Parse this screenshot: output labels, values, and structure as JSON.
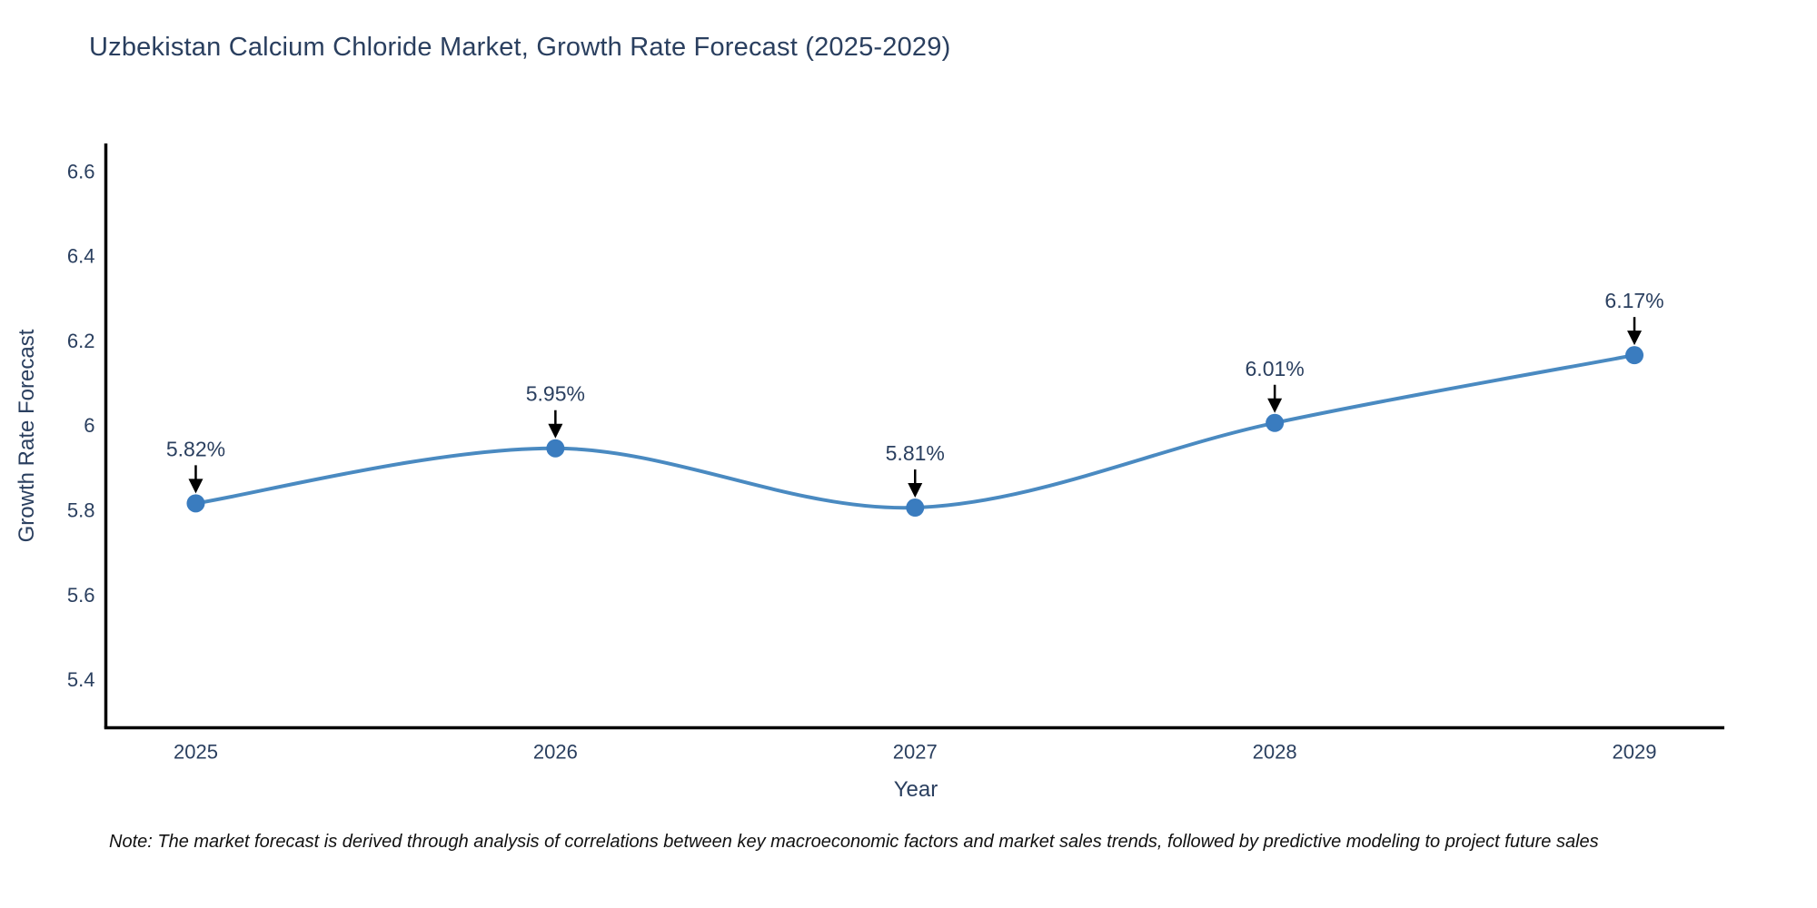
{
  "page": {
    "note": "Note: The market forecast is derived through analysis of correlations between key macroeconomic factors and market sales trends, followed by predictive modeling to project future sales"
  },
  "chart_data": {
    "type": "line",
    "title": "Uzbekistan Calcium Chloride Market, Growth Rate Forecast (2025-2029)",
    "xlabel": "Year",
    "ylabel": "Growth Rate Forecast",
    "x": [
      2025,
      2026,
      2027,
      2028,
      2029
    ],
    "values": [
      5.82,
      5.95,
      5.81,
      6.01,
      6.17
    ],
    "point_labels": [
      "5.82%",
      "5.95%",
      "5.81%",
      "6.01%",
      "6.17%"
    ],
    "xticks": [
      2025,
      2026,
      2027,
      2028,
      2029
    ],
    "xtick_labels": [
      "2025",
      "2026",
      "2027",
      "2028",
      "2029"
    ],
    "yticks": [
      5.4,
      5.6,
      5.8,
      6.0,
      6.2,
      6.4,
      6.6
    ],
    "ytick_labels": [
      "5.4",
      "5.6",
      "5.8",
      "6",
      "6.2",
      "6.4",
      "6.6"
    ],
    "xlim": [
      2024.75,
      2029.25
    ],
    "ylim": [
      5.29,
      6.67
    ],
    "grid": false,
    "legend": false,
    "line_shape": "spline",
    "colors": {
      "line": "#4a8ac1",
      "marker": "#3a7cbf",
      "axis_line": "#000000",
      "text": "#2a3f5f",
      "annotation_text": "#2a3f5f",
      "annotation_arrow": "#000000"
    }
  }
}
